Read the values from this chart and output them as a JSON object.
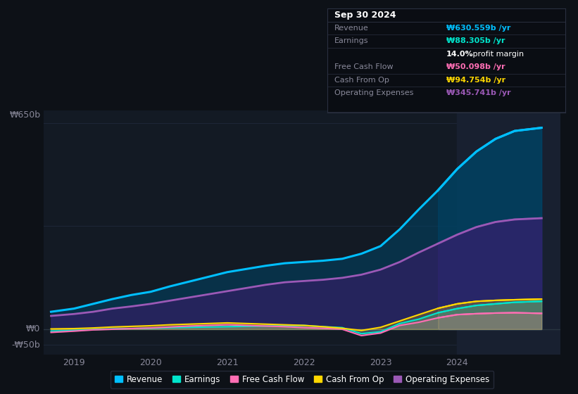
{
  "bg_color": "#0d1117",
  "plot_bg_color": "#131a24",
  "grid_color": "#1e2738",
  "revenue_color": "#00bfff",
  "earnings_color": "#00e5cc",
  "fcf_color": "#ff6eb4",
  "cashop_color": "#ffd700",
  "opex_color": "#9b59b6",
  "revenue_fill": "#004466",
  "opex_fill": "#3d1a6e",
  "earnings_fill": "#00e5cc",
  "fcf_fill": "#ff6eb4",
  "cashop_fill": "#ffd700",
  "ylim": [
    -80,
    690
  ],
  "xlim": [
    2018.6,
    2025.35
  ],
  "xticks": [
    2019,
    2020,
    2021,
    2022,
    2023,
    2024
  ],
  "ylabel_650": "₩650b",
  "ylabel_0": "₩0",
  "ylabel_neg50": "-₩50b",
  "x": [
    2018.7,
    2019.0,
    2019.25,
    2019.5,
    2019.75,
    2020.0,
    2020.25,
    2020.5,
    2020.75,
    2021.0,
    2021.25,
    2021.5,
    2021.75,
    2022.0,
    2022.25,
    2022.5,
    2022.75,
    2023.0,
    2023.25,
    2023.5,
    2023.75,
    2024.0,
    2024.25,
    2024.5,
    2024.75,
    2025.1
  ],
  "revenue": [
    55,
    65,
    80,
    95,
    108,
    118,
    135,
    150,
    165,
    180,
    190,
    200,
    208,
    212,
    216,
    222,
    238,
    262,
    315,
    378,
    438,
    505,
    560,
    600,
    625,
    635
  ],
  "opex": [
    42,
    48,
    55,
    65,
    72,
    80,
    90,
    100,
    110,
    120,
    130,
    140,
    148,
    152,
    156,
    162,
    172,
    188,
    212,
    242,
    270,
    298,
    322,
    338,
    346,
    350
  ],
  "earnings": [
    -6,
    -4,
    -1,
    1,
    2,
    3,
    5,
    6,
    7,
    8,
    9,
    10,
    11,
    12,
    8,
    5,
    -14,
    -8,
    18,
    32,
    52,
    65,
    75,
    80,
    85,
    88
  ],
  "fcf": [
    -10,
    -6,
    -2,
    0,
    2,
    4,
    7,
    10,
    12,
    14,
    12,
    10,
    8,
    5,
    3,
    0,
    -20,
    -12,
    12,
    22,
    36,
    46,
    49,
    51,
    52,
    50
  ],
  "cashop": [
    1,
    2,
    4,
    7,
    9,
    11,
    14,
    16,
    18,
    20,
    18,
    16,
    14,
    12,
    8,
    3,
    -4,
    6,
    26,
    46,
    66,
    80,
    88,
    91,
    93,
    95
  ],
  "tooltip_title": "Sep 30 2024",
  "tooltip_bg": "#0a0d13",
  "tooltip_border": "#2a3040",
  "tooltip_title_color": "#ffffff",
  "tooltip_label_color": "#888899",
  "tooltip_rows": [
    {
      "label": "Revenue",
      "value": "₩630.559b /yr",
      "value_color": "#00bfff"
    },
    {
      "label": "Earnings",
      "value": "₩88.305b /yr",
      "value_color": "#00e5cc"
    },
    {
      "label": "",
      "value": "14.0% profit margin",
      "value_color": "#ffffff",
      "special": true
    },
    {
      "label": "Free Cash Flow",
      "value": "₩50.098b /yr",
      "value_color": "#ff6eb4"
    },
    {
      "label": "Cash From Op",
      "value": "₩94.754b /yr",
      "value_color": "#ffd700"
    },
    {
      "label": "Operating Expenses",
      "value": "₩345.741b /yr",
      "value_color": "#9b59b6"
    }
  ],
  "legend_items": [
    {
      "label": "Revenue",
      "color": "#00bfff"
    },
    {
      "label": "Earnings",
      "color": "#00e5cc"
    },
    {
      "label": "Free Cash Flow",
      "color": "#ff6eb4"
    },
    {
      "label": "Cash From Op",
      "color": "#ffd700"
    },
    {
      "label": "Operating Expenses",
      "color": "#9b59b6"
    }
  ],
  "highlight_start": 2024.0,
  "highlight_end": 2025.35,
  "highlight_color": "#182030"
}
